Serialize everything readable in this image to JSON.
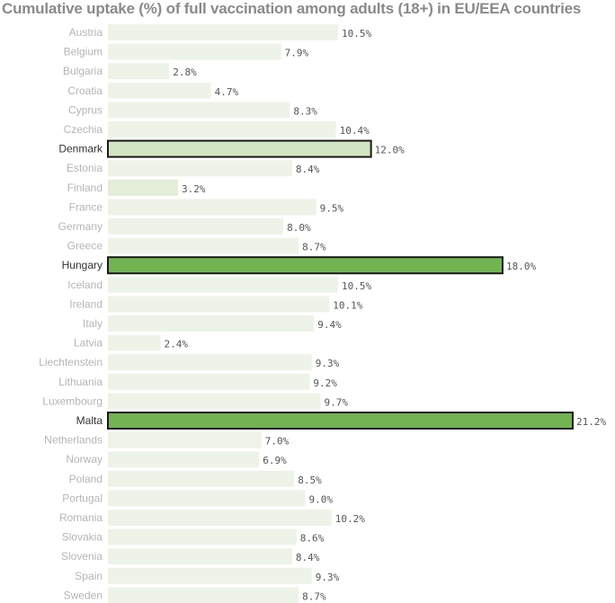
{
  "chart_data": {
    "type": "bar",
    "orientation": "horizontal",
    "title": "Cumulative uptake (%) of full vaccination among adults (18+) in EU/EEA countries",
    "categories": [
      "Austria",
      "Belgium",
      "Bulgaria",
      "Croatia",
      "Cyprus",
      "Czechia",
      "Denmark",
      "Estonia",
      "Finland",
      "France",
      "Germany",
      "Greece",
      "Hungary",
      "Iceland",
      "Ireland",
      "Italy",
      "Latvia",
      "Liechtenstein",
      "Lithuania",
      "Luxembourg",
      "Malta",
      "Netherlands",
      "Norway",
      "Poland",
      "Portugal",
      "Romania",
      "Slovakia",
      "Slovenia",
      "Spain",
      "Sweden"
    ],
    "values": [
      10.5,
      7.9,
      2.8,
      4.7,
      8.3,
      10.4,
      12.0,
      8.4,
      3.2,
      9.5,
      8.0,
      8.7,
      18.0,
      10.5,
      10.1,
      9.4,
      2.4,
      9.3,
      9.2,
      9.7,
      21.2,
      7.0,
      6.9,
      8.5,
      9.0,
      10.2,
      8.6,
      8.4,
      9.3,
      8.7
    ],
    "value_labels": [
      "10.5%",
      "7.9%",
      "2.8%",
      "4.7%",
      "8.3%",
      "10.4%",
      "12.0%",
      "8.4%",
      "3.2%",
      "9.5%",
      "8.0%",
      "8.7%",
      "18.0%",
      "10.5%",
      "10.1%",
      "9.4%",
      "2.4%",
      "9.3%",
      "9.2%",
      "9.7%",
      "21.2%",
      "7.0%",
      "6.9%",
      "8.5%",
      "9.0%",
      "10.2%",
      "8.6%",
      "8.4%",
      "9.3%",
      "8.7%"
    ],
    "highlighted": [
      "Denmark",
      "Hungary",
      "Malta"
    ],
    "xlim": [
      0,
      21.2
    ],
    "grid": false,
    "colors": {
      "bar_default": "#eef3e8",
      "bar_light": "#e3edd8",
      "bar_denmark": "#d3e6c3",
      "bar_highlight": "#73b352",
      "bar_outline": "#1a1a1a",
      "label_default": "#b5b5b5",
      "label_highlight": "#333333"
    }
  }
}
